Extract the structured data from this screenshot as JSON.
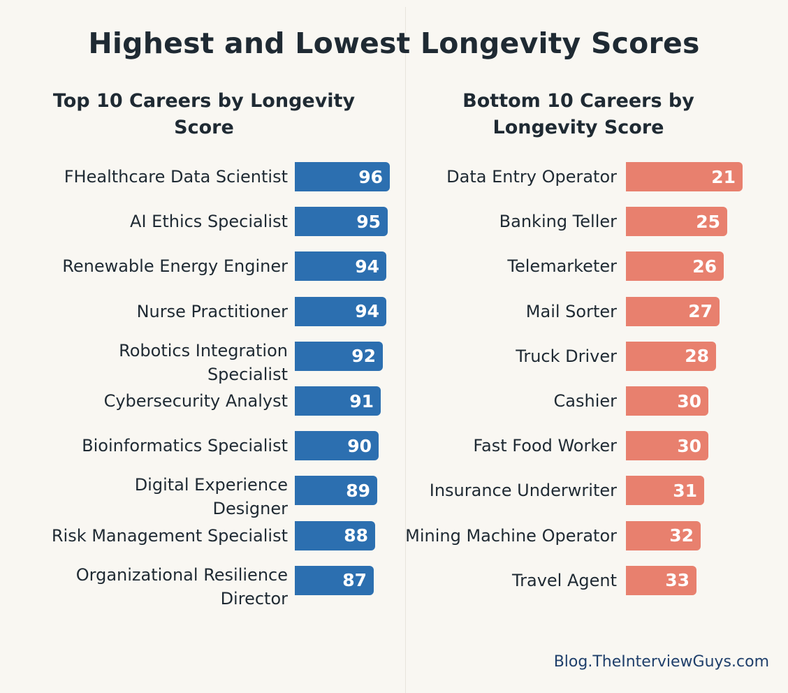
{
  "header": {
    "title": "Highest and Lowest Longevity Scores",
    "left_title": "Top 10 Careers by Longevity Score",
    "right_title": "Bottom 10 Careers by Longevity Score"
  },
  "footer": {
    "source": "Blog.TheInterviewGuys.com"
  },
  "colors": {
    "top": "#2c6fb0",
    "bottom": "#e8806e"
  },
  "chart_data": [
    {
      "type": "bar",
      "orientation": "horizontal",
      "title": "Top 10 Careers by Longevity Score",
      "categories": [
        "FHealthcare Data Scientist",
        "AI Ethics Specialist",
        "Renewable Energy Enginer",
        "Nurse Practitioner",
        "Robotics Integration Specialist",
        "Cybersecurity Analyst",
        "Bioinformatics Specialist",
        "Digital Experience Designer",
        "Risk Management Specialist",
        "Organizational Resilience Director"
      ],
      "values": [
        96,
        95,
        94,
        94,
        92,
        91,
        90,
        89,
        88,
        87
      ],
      "data_labels": true,
      "grid": false
    },
    {
      "type": "bar",
      "orientation": "horizontal",
      "title": "Bottom 10 Careers by Longevity Score",
      "categories": [
        "Data Entry Operator",
        "Banking Teller",
        "Telemarketer",
        "Mail Sorter",
        "Truck Driver",
        "Cashier",
        "Fast Food Worker",
        "Insurance Underwriter",
        "Mining Machine Operator",
        "Travel Agent"
      ],
      "values": [
        21,
        25,
        26,
        27,
        28,
        30,
        30,
        31,
        32,
        33
      ],
      "data_labels": true,
      "grid": false
    }
  ]
}
